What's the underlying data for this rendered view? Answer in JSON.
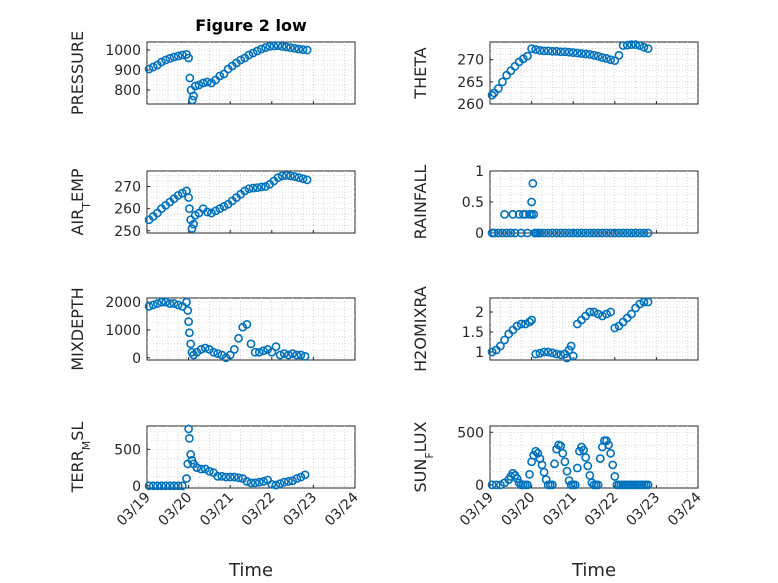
{
  "figure": {
    "title": "Figure 2 low",
    "xlabel": "Time"
  },
  "style": {
    "marker_color": "#0072BD"
  },
  "x_ticks": [
    "03/19",
    "03/20",
    "03/21",
    "03/22",
    "03/23",
    "03/24"
  ],
  "chart_data": [
    {
      "type": "scatter",
      "ylabel": "PRESSURE",
      "marker": "circle",
      "xlim": [
        0,
        5
      ],
      "ylim": [
        730,
        1040
      ],
      "yticks": [
        800,
        900,
        1000
      ],
      "x": [
        0.05,
        0.15,
        0.25,
        0.35,
        0.45,
        0.55,
        0.65,
        0.75,
        0.85,
        0.95,
        1.0,
        1.03,
        1.06,
        1.09,
        1.12,
        1.16,
        1.25,
        1.35,
        1.45,
        1.55,
        1.65,
        1.75,
        1.85,
        1.95,
        2.05,
        2.15,
        2.25,
        2.35,
        2.45,
        2.55,
        2.65,
        2.75,
        2.85,
        2.95,
        3.05,
        3.15,
        3.25,
        3.35,
        3.45,
        3.55,
        3.65,
        3.75,
        3.85
      ],
      "y": [
        905,
        915,
        925,
        940,
        950,
        958,
        965,
        970,
        975,
        978,
        960,
        860,
        800,
        750,
        770,
        820,
        825,
        835,
        840,
        835,
        850,
        870,
        880,
        905,
        920,
        935,
        950,
        960,
        975,
        985,
        995,
        1005,
        1012,
        1018,
        1020,
        1022,
        1018,
        1015,
        1012,
        1008,
        1005,
        1002,
        1000
      ]
    },
    {
      "type": "scatter",
      "ylabel": "THETA",
      "marker": "circle",
      "xlim": [
        0,
        5
      ],
      "ylim": [
        260,
        274
      ],
      "yticks": [
        260,
        265,
        270
      ],
      "x": [
        0.05,
        0.1,
        0.2,
        0.3,
        0.4,
        0.5,
        0.6,
        0.7,
        0.8,
        0.9,
        1.0,
        1.1,
        1.2,
        1.3,
        1.4,
        1.5,
        1.6,
        1.7,
        1.8,
        1.9,
        2.0,
        2.1,
        2.2,
        2.3,
        2.4,
        2.5,
        2.6,
        2.7,
        2.8,
        2.9,
        3.0,
        3.1,
        3.2,
        3.3,
        3.4,
        3.5,
        3.6,
        3.7,
        3.8
      ],
      "y": [
        262,
        262.5,
        263.5,
        265,
        266.5,
        267.5,
        268.5,
        269.5,
        270.2,
        270.8,
        272.5,
        272.3,
        272.1,
        272,
        272,
        271.9,
        271.9,
        271.8,
        271.8,
        271.7,
        271.6,
        271.5,
        271.4,
        271.3,
        271.2,
        271,
        270.8,
        270.5,
        270.3,
        270,
        269.8,
        271,
        273.2,
        273.3,
        273.4,
        273.4,
        273.2,
        272.8,
        272.5
      ]
    },
    {
      "type": "scatter",
      "ylabel": "AIR_TEMP",
      "marker": "circle",
      "xlim": [
        0,
        5
      ],
      "ylim": [
        249,
        277
      ],
      "yticks": [
        250,
        260,
        270
      ],
      "x": [
        0.05,
        0.15,
        0.25,
        0.35,
        0.45,
        0.55,
        0.65,
        0.75,
        0.85,
        0.95,
        1.0,
        1.02,
        1.05,
        1.08,
        1.12,
        1.16,
        1.25,
        1.35,
        1.45,
        1.55,
        1.65,
        1.75,
        1.85,
        1.95,
        2.05,
        2.15,
        2.25,
        2.35,
        2.45,
        2.55,
        2.65,
        2.75,
        2.85,
        2.95,
        3.05,
        3.15,
        3.25,
        3.35,
        3.45,
        3.55,
        3.65,
        3.75,
        3.85
      ],
      "y": [
        255,
        256.5,
        258,
        260,
        261.5,
        263,
        264.5,
        266,
        267,
        268,
        265,
        260,
        255,
        251,
        253,
        257,
        258,
        260,
        258.5,
        258,
        259,
        260,
        261,
        262,
        263.5,
        265,
        266.5,
        268,
        269,
        269.3,
        269.5,
        269.8,
        270,
        271,
        272.5,
        274,
        274.8,
        275,
        274.8,
        274.5,
        274,
        273.5,
        273
      ]
    },
    {
      "type": "scatter",
      "ylabel": "RAINFALL",
      "marker": "circle",
      "xlim": [
        0,
        5
      ],
      "ylim": [
        0,
        1
      ],
      "yticks": [
        0,
        0.5,
        1
      ],
      "x": [
        0.05,
        0.1,
        0.2,
        0.3,
        0.35,
        0.4,
        0.5,
        0.55,
        0.6,
        0.7,
        0.75,
        0.8,
        0.85,
        0.9,
        0.95,
        1.0,
        1.0,
        1.03,
        1.05,
        1.08,
        1.1,
        1.15,
        1.2,
        1.3,
        1.4,
        1.5,
        1.6,
        1.7,
        1.8,
        1.9,
        2.0,
        2.1,
        2.2,
        2.3,
        2.4,
        2.5,
        2.6,
        2.7,
        2.8,
        2.9,
        3.0,
        3.1,
        3.2,
        3.3,
        3.4,
        3.5,
        3.6,
        3.7,
        3.8
      ],
      "y": [
        0,
        0,
        0,
        0,
        0.3,
        0,
        0,
        0.3,
        0,
        0.3,
        0,
        0.3,
        0.3,
        0,
        0.3,
        0.5,
        0.3,
        0.8,
        0.3,
        0,
        0,
        0,
        0,
        0,
        0,
        0,
        0,
        0,
        0,
        0,
        0,
        0,
        0,
        0,
        0,
        0,
        0,
        0,
        0,
        0,
        0,
        0,
        0,
        0,
        0,
        0,
        0,
        0,
        0
      ]
    },
    {
      "type": "scatter",
      "ylabel": "MIXDEPTH",
      "marker": "circle",
      "xlim": [
        0,
        5
      ],
      "ylim": [
        -80,
        2150
      ],
      "yticks": [
        0,
        1000,
        2000
      ],
      "x": [
        0.05,
        0.15,
        0.25,
        0.35,
        0.45,
        0.55,
        0.65,
        0.75,
        0.85,
        0.95,
        0.98,
        1.0,
        1.02,
        1.05,
        1.08,
        1.12,
        1.2,
        1.3,
        1.4,
        1.5,
        1.6,
        1.7,
        1.8,
        1.9,
        2.0,
        2.1,
        2.2,
        2.3,
        2.4,
        2.5,
        2.6,
        2.7,
        2.8,
        2.9,
        3.0,
        3.1,
        3.2,
        3.3,
        3.4,
        3.5,
        3.6,
        3.7,
        3.8
      ],
      "y": [
        1850,
        1900,
        1950,
        2000,
        2000,
        1950,
        1950,
        1900,
        1850,
        2000,
        1700,
        1300,
        900,
        500,
        200,
        100,
        200,
        300,
        350,
        300,
        200,
        150,
        100,
        0,
        100,
        300,
        700,
        1100,
        1200,
        500,
        200,
        200,
        250,
        300,
        200,
        400,
        100,
        150,
        100,
        150,
        100,
        100,
        50
      ]
    },
    {
      "type": "scatter",
      "ylabel": "H2OMIXRA",
      "marker": "circle",
      "xlim": [
        0,
        5
      ],
      "ylim": [
        0.8,
        2.35
      ],
      "yticks": [
        1,
        1.5,
        2
      ],
      "x": [
        0.05,
        0.15,
        0.25,
        0.35,
        0.45,
        0.55,
        0.65,
        0.75,
        0.85,
        0.95,
        1.0,
        1.1,
        1.2,
        1.3,
        1.4,
        1.5,
        1.6,
        1.7,
        1.8,
        1.85,
        1.9,
        1.95,
        2.0,
        2.1,
        2.2,
        2.3,
        2.4,
        2.5,
        2.6,
        2.7,
        2.8,
        2.9,
        3.0,
        3.1,
        3.2,
        3.3,
        3.4,
        3.5,
        3.6,
        3.7,
        3.8
      ],
      "y": [
        1.0,
        1.05,
        1.15,
        1.3,
        1.45,
        1.55,
        1.65,
        1.7,
        1.7,
        1.75,
        1.8,
        0.95,
        0.97,
        1.0,
        1.0,
        0.98,
        0.95,
        0.93,
        0.95,
        0.85,
        1.05,
        1.15,
        0.9,
        1.7,
        1.8,
        1.9,
        2.0,
        2.0,
        1.95,
        1.9,
        1.95,
        2.0,
        1.6,
        1.65,
        1.75,
        1.85,
        1.95,
        2.1,
        2.2,
        2.25,
        2.25
      ]
    },
    {
      "type": "scatter",
      "ylabel": "TERR_MSL",
      "marker": "circle",
      "xlim": [
        0,
        5
      ],
      "ylim": [
        -30,
        820
      ],
      "yticks": [
        0,
        500
      ],
      "x": [
        0.05,
        0.15,
        0.25,
        0.35,
        0.45,
        0.55,
        0.65,
        0.75,
        0.85,
        0.95,
        0.98,
        1.0,
        1.02,
        1.05,
        1.08,
        1.12,
        1.2,
        1.3,
        1.4,
        1.5,
        1.6,
        1.7,
        1.8,
        1.9,
        2.0,
        2.1,
        2.2,
        2.3,
        2.4,
        2.5,
        2.6,
        2.7,
        2.8,
        2.9,
        3.0,
        3.1,
        3.2,
        3.3,
        3.4,
        3.5,
        3.6,
        3.7,
        3.8
      ],
      "y": [
        0,
        0,
        0,
        0,
        0,
        0,
        0,
        0,
        0,
        100,
        300,
        780,
        650,
        430,
        350,
        300,
        250,
        230,
        230,
        200,
        180,
        130,
        130,
        120,
        120,
        120,
        110,
        100,
        60,
        40,
        40,
        50,
        60,
        80,
        20,
        10,
        30,
        50,
        60,
        70,
        100,
        120,
        150
      ]
    },
    {
      "type": "scatter",
      "ylabel": "SUN_FLUX",
      "marker": "circle",
      "xlim": [
        0,
        5
      ],
      "ylim": [
        -30,
        560
      ],
      "yticks": [
        0,
        500
      ],
      "x": [
        0.05,
        0.15,
        0.25,
        0.35,
        0.45,
        0.5,
        0.55,
        0.6,
        0.65,
        0.7,
        0.75,
        0.8,
        0.85,
        0.9,
        0.95,
        1.0,
        1.05,
        1.1,
        1.15,
        1.2,
        1.25,
        1.3,
        1.35,
        1.4,
        1.45,
        1.5,
        1.55,
        1.6,
        1.65,
        1.7,
        1.75,
        1.8,
        1.85,
        1.9,
        1.95,
        2.0,
        2.05,
        2.1,
        2.15,
        2.2,
        2.25,
        2.3,
        2.35,
        2.4,
        2.45,
        2.5,
        2.55,
        2.6,
        2.65,
        2.7,
        2.75,
        2.8,
        2.85,
        2.9,
        2.95,
        3.0,
        3.05,
        3.1,
        3.15,
        3.2,
        3.25,
        3.3,
        3.35,
        3.4,
        3.45,
        3.5,
        3.55,
        3.6,
        3.65,
        3.7,
        3.75,
        3.8
      ],
      "y": [
        0,
        0,
        0,
        20,
        50,
        80,
        110,
        90,
        60,
        20,
        0,
        0,
        0,
        0,
        100,
        220,
        280,
        320,
        300,
        250,
        190,
        120,
        50,
        0,
        0,
        0,
        200,
        340,
        380,
        370,
        300,
        220,
        130,
        40,
        0,
        0,
        0,
        160,
        320,
        360,
        330,
        260,
        180,
        90,
        20,
        0,
        0,
        0,
        250,
        360,
        420,
        420,
        380,
        300,
        190,
        80,
        0,
        0,
        0,
        0,
        0,
        0,
        0,
        0,
        0,
        0,
        0,
        0,
        0,
        0,
        0,
        0
      ]
    }
  ]
}
